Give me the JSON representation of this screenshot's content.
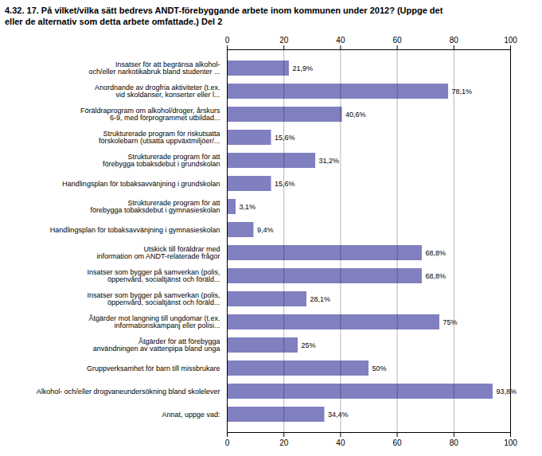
{
  "chart_data": {
    "type": "bar",
    "orientation": "horizontal",
    "title": "4.32. 17. På vilket/vilka sätt bedrevs ANDT-förebyggande arbete inom kommunen under 2012? (Uppge det\neller de alternativ som detta arbete omfattade.) Del 2",
    "categories": [
      "Insatser för att begränsa alkohol-\noch/eller narkotikabruk bland studenter ...",
      "Anordnande av drogfria aktiviteter (t.ex.\nvid skoldanser, konserter eller l...",
      "Föräldraprogram om alkohol/droger, årskurs\n6-9, med förprogrammet utbildad...",
      "Strukturerade program för riskutsatta\nförskolebarn (utsatta uppväxtmiljöer/...",
      "Strukturerade program för att\nförebygga tobaksdebut i grundskolan",
      "Handlingsplan för tobaksavvänjning i grundskolan",
      "Strukturerade program för att\nförebygga tobaksdebut i gymnasieskolan",
      "Handlingsplan för tobaksavvänjning i gymnasieskolan",
      "Utskick till föräldrar med\ninformation om ANDT-relaterade frågor",
      "Insatser som bygger på samverkan (polis,\nöppenvård, socialtjänst och föräld...",
      "Insatser som bygger på samverkan (polis,\nöppenvård, socialtjänst och föräld...",
      "Åtgärder mot langning till ungdomar (t.ex.\ninformationskampanj eller polisi...",
      "Åtgärder för att förebygga\nanvändningen av vattenpipa bland unga",
      "Gruppverksamhet för barn till missbrukare",
      "Alkohol- och/eller drogvaneundersökning bland skolelever",
      "Annat, uppge vad:"
    ],
    "values": [
      21.9,
      78.1,
      40.6,
      15.6,
      31.2,
      15.6,
      3.1,
      9.4,
      68.8,
      68.8,
      28.1,
      75.0,
      25.0,
      50.0,
      93.8,
      34.4
    ],
    "value_labels": [
      "21,9%",
      "78,1%",
      "40,6%",
      "15,6%",
      "31,2%",
      "15,6%",
      "3,1%",
      "9,4%",
      "68,8%",
      "68,8%",
      "28,1%",
      "75%",
      "25%",
      "50%",
      "93,8%",
      "34,4%"
    ],
    "data_labels": true,
    "color": "#8080C0",
    "xlim": [
      0,
      100
    ],
    "xticks": [
      0,
      20,
      40,
      60,
      80,
      100
    ],
    "grid": true
  }
}
